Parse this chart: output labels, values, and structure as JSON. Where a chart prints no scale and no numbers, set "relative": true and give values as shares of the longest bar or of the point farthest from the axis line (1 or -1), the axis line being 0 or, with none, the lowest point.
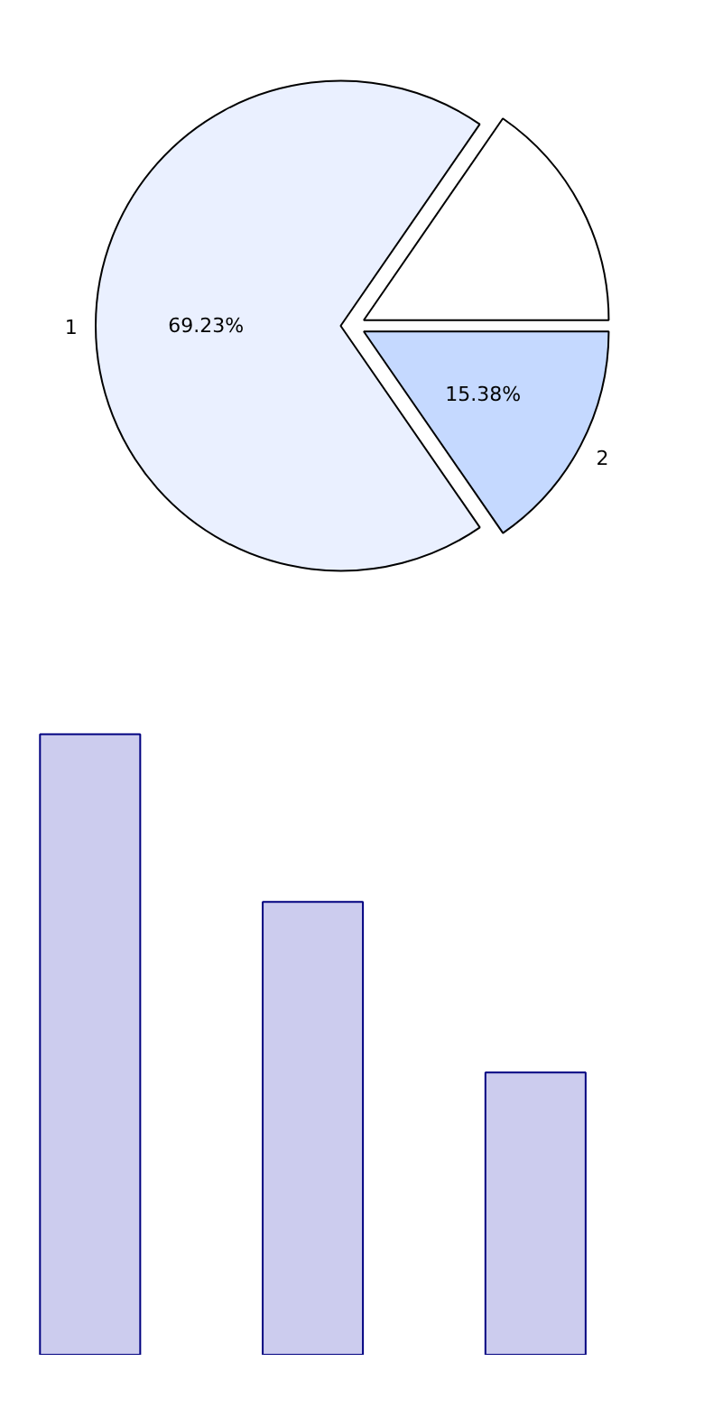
{
  "chart_data": [
    {
      "type": "pie",
      "categories": [
        null,
        "1",
        "2"
      ],
      "values": [
        15.39,
        69.23,
        15.38
      ],
      "colors": [
        "#ffffff",
        "#eaf0ff",
        "#c5d9ff"
      ],
      "value_labels": [
        null,
        "69.23%",
        "15.38%"
      ]
    },
    {
      "type": "bar",
      "categories": [
        null,
        null,
        null
      ],
      "values": [
        1,
        0.73,
        0.455
      ],
      "color": "#ccccee",
      "relative": true
    }
  ]
}
